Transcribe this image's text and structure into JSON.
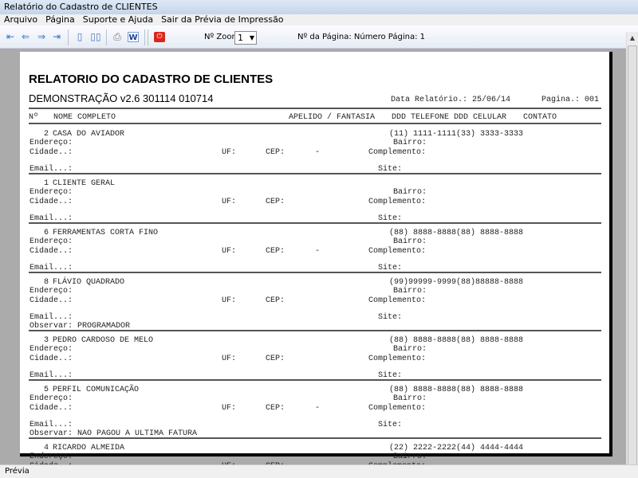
{
  "window": {
    "title": "Relatório do Cadastro de CLIENTES"
  },
  "menu": [
    "Arquivo",
    "Página",
    "Suporte e Ajuda",
    "Sair da Prévia de Impressão"
  ],
  "toolbar": {
    "buttons": [
      {
        "name": "first-page-icon",
        "glyph": "⇤"
      },
      {
        "name": "prev-page-icon",
        "glyph": "⇐"
      },
      {
        "name": "next-page-icon",
        "glyph": "⇒"
      },
      {
        "name": "last-page-icon",
        "glyph": "⇥"
      },
      {
        "name": "single-page-icon",
        "glyph": "▯"
      },
      {
        "name": "two-pages-icon",
        "glyph": "▯▯"
      },
      {
        "name": "print-icon",
        "glyph": "⎙"
      },
      {
        "name": "word-export-icon",
        "glyph": "W"
      },
      {
        "name": "close-preview-icon",
        "glyph": "⏻"
      }
    ],
    "zoom_label": "Nº Zoom",
    "zoom_value": "1",
    "page_label": "Nº da Página: Número Página: 1"
  },
  "report": {
    "title": "RELATORIO DO CADASTRO DE CLIENTES",
    "subtitle": "DEMONSTRAÇÃO v2.6 301114 010714",
    "date": "Data Relatório.: 25/06/14",
    "page": "Pagina.: 001",
    "columns": {
      "num": "Nº",
      "name": "NOME COMPLETO",
      "alias": "APELIDO / FANTASIA",
      "phone": "DDD TELEFONE DDD CELULAR",
      "contact": "CONTATO"
    },
    "labels": {
      "endereco": "Endereço:",
      "bairro": "Bairro:",
      "cidade": "Cidade..:",
      "uf": "UF:",
      "cep": "CEP:",
      "complemento": "Complemento:",
      "email": "Email...:",
      "site": "Site:",
      "observar": "Observar:"
    },
    "records": [
      {
        "num": "2",
        "name": "CASA DO AVIADOR",
        "phone": "(11) 1111-1111(33) 3333-3333",
        "cep": "-",
        "obs": ""
      },
      {
        "num": "1",
        "name": "CLIENTE GERAL",
        "phone": "",
        "cep": "",
        "obs": ""
      },
      {
        "num": "6",
        "name": "FERRAMENTAS CORTA FINO",
        "phone": "(88) 8888-8888(88) 8888-8888",
        "cep": "-",
        "obs": ""
      },
      {
        "num": "8",
        "name": "FLÁVIO QUADRADO",
        "phone": "(99)99999-9999(88)88888-8888",
        "cep": "",
        "obs": "PROGRAMADOR"
      },
      {
        "num": "3",
        "name": "PEDRO CARDOSO DE MELO",
        "phone": "(88) 8888-8888(88) 8888-8888",
        "cep": "",
        "obs": ""
      },
      {
        "num": "5",
        "name": "PERFIL COMUNICAÇÃO",
        "phone": "(88) 8888-8888(88) 8888-8888",
        "cep": "-",
        "obs": "NAO PAGOU A ULTIMA FATURA"
      },
      {
        "num": "4",
        "name": "RICARDO ALMEIDA",
        "phone": "(22) 2222-2222(44) 4444-4444",
        "cep": "",
        "obs": ""
      }
    ]
  },
  "status": "Prévia"
}
